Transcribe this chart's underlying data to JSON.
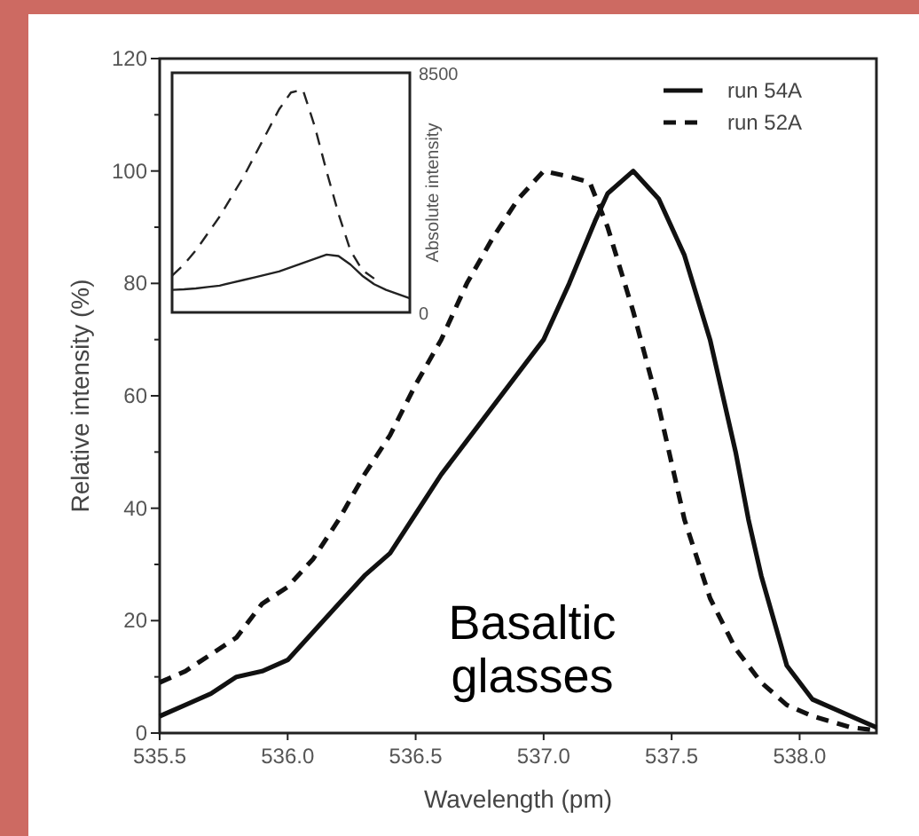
{
  "chart_data": [
    {
      "type": "line",
      "xlabel": "Wavelength (pm)",
      "ylabel": "Relative intensity (%)",
      "xlim": [
        535.5,
        538.3
      ],
      "ylim": [
        0,
        120
      ],
      "xticks": [
        535.5,
        {
          "value": 536,
          "label": "536.0"
        },
        536.5,
        {
          "value": 537,
          "label": "537.0"
        },
        537.5,
        {
          "value": 538,
          "label": "538.0"
        }
      ],
      "yticks": [
        0,
        {
          "value": 10,
          "label": null
        },
        20,
        {
          "value": 30,
          "label": null
        },
        40,
        {
          "value": 50,
          "label": null
        },
        60,
        {
          "value": 70,
          "label": null
        },
        80,
        {
          "value": 90,
          "label": null
        },
        100,
        {
          "value": 110,
          "label": null
        },
        120
      ],
      "legend": "top right",
      "grid": false,
      "annotations": [
        "Basaltic glasses"
      ],
      "series": [
        {
          "name": "run 54A",
          "color": "#111111",
          "line_style": "solid",
          "x": [
            535.5,
            535.6,
            535.7,
            535.8,
            535.9,
            536.0,
            536.1,
            536.2,
            536.3,
            536.4,
            536.5,
            536.6,
            536.7,
            536.8,
            536.9,
            537.0,
            537.1,
            537.2,
            537.25,
            537.35,
            537.45,
            537.55,
            537.65,
            537.75,
            537.8,
            537.85,
            537.95,
            538.05,
            538.15,
            538.25,
            538.3
          ],
          "values": [
            3,
            5,
            7,
            10,
            11,
            13,
            18,
            23,
            28,
            32,
            39,
            46,
            52,
            58,
            64,
            70,
            80,
            91,
            96,
            100,
            95,
            85,
            70,
            50,
            38,
            28,
            12,
            6,
            4,
            2,
            1
          ]
        },
        {
          "name": "run 52A",
          "color": "#111111",
          "line_style": "dashed",
          "x": [
            535.5,
            535.6,
            535.7,
            535.8,
            535.9,
            536.0,
            536.1,
            536.2,
            536.3,
            536.4,
            536.5,
            536.6,
            536.7,
            536.8,
            536.9,
            537.0,
            537.1,
            537.18,
            537.25,
            537.35,
            537.45,
            537.55,
            537.65,
            537.75,
            537.85,
            537.95,
            538.05,
            538.2,
            538.3
          ],
          "values": [
            9,
            11,
            14,
            17,
            23,
            26,
            31,
            38,
            46,
            53,
            62,
            70,
            80,
            88,
            95,
            100,
            99,
            98,
            90,
            75,
            58,
            38,
            24,
            15,
            9,
            5,
            3,
            1,
            0.5
          ]
        }
      ]
    },
    {
      "type": "line",
      "ylabel": "Absolute intensity",
      "ylim": [
        0,
        8500
      ],
      "yticks": [
        0,
        8500
      ],
      "tick_labels": "y",
      "categories": [
        null,
        null,
        null,
        null,
        null,
        null,
        null,
        null,
        null,
        null,
        null,
        null,
        null,
        null,
        null,
        null,
        null,
        null,
        null,
        null,
        null
      ],
      "series": [
        {
          "color": "#222222",
          "line_style": "solid",
          "values": [
            800,
            820,
            850,
            900,
            950,
            1050,
            1150,
            1250,
            1350,
            1450,
            1600,
            1750,
            1900,
            2050,
            2000,
            1700,
            1300,
            1000,
            800,
            650,
            500
          ]
        },
        {
          "color": "#222222",
          "line_style": "dashed",
          "values": [
            1300,
            1700,
            2200,
            2800,
            3400,
            4100,
            4800,
            5600,
            6400,
            7200,
            7800,
            7900,
            6600,
            5000,
            3500,
            2200,
            1500,
            1200,
            null,
            null,
            null
          ]
        }
      ]
    }
  ]
}
